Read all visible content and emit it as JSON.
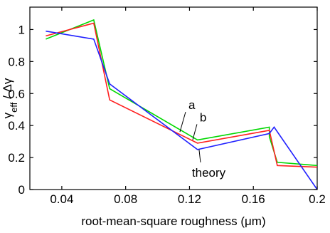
{
  "chart_data": {
    "type": "line",
    "title": "",
    "xlabel": "root-mean-square roughness (μm)",
    "ylabel_main": "γ",
    "ylabel_sub": "eff",
    "ylabel_rest": " / Δγ",
    "xlim": [
      0.02,
      0.2
    ],
    "ylim": [
      0,
      1.14
    ],
    "xticks": [
      0.04,
      0.08,
      0.12,
      0.16,
      0.2
    ],
    "xtick_labels": [
      "0.04",
      "0.08",
      "0.12",
      "0.16",
      "0.2"
    ],
    "yticks": [
      0,
      0.2,
      0.4,
      0.6,
      0.8,
      1
    ],
    "ytick_labels": [
      "0",
      "0.2",
      "0.4",
      "0.6",
      "0.8",
      "1"
    ],
    "grid": false,
    "legend": "none",
    "series": [
      {
        "label": "green",
        "color": "#00d800",
        "x": [
          0.03,
          0.06,
          0.07,
          0.125,
          0.17,
          0.17,
          0.175,
          0.2
        ],
        "y": [
          0.94,
          1.06,
          0.63,
          0.31,
          0.39,
          0.33,
          0.17,
          0.15
        ]
      },
      {
        "label": "red",
        "color": "#ff2020",
        "x": [
          0.03,
          0.06,
          0.07,
          0.125,
          0.17,
          0.175,
          0.2
        ],
        "y": [
          0.96,
          1.04,
          0.56,
          0.29,
          0.37,
          0.15,
          0.14
        ]
      },
      {
        "label": "blue",
        "color": "#2020ff",
        "x": [
          0.03,
          0.06,
          0.07,
          0.125,
          0.17,
          0.173,
          0.2
        ],
        "y": [
          0.99,
          0.94,
          0.66,
          0.25,
          0.35,
          0.39,
          0.0
        ]
      }
    ],
    "annotations": [
      {
        "text": "a",
        "anchor_x": 0.114,
        "anchor_y": 0.36
      },
      {
        "text": "b",
        "anchor_x": 0.122,
        "anchor_y": 0.31
      },
      {
        "text": "theory",
        "anchor_x": 0.126,
        "anchor_y": 0.25
      }
    ]
  }
}
